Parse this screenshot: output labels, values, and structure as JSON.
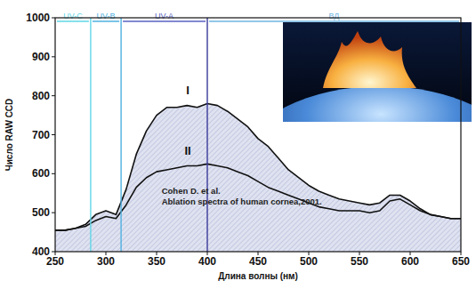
{
  "chart_data": {
    "type": "line",
    "x_label": "Длина волны (нм)",
    "y_label": "Число RAW CCD",
    "x": [
      250,
      260,
      270,
      280,
      290,
      300,
      310,
      320,
      330,
      340,
      350,
      360,
      370,
      380,
      390,
      400,
      410,
      420,
      430,
      440,
      450,
      460,
      470,
      480,
      490,
      500,
      510,
      520,
      530,
      540,
      550,
      560,
      570,
      580,
      590,
      600,
      610,
      620,
      630,
      640,
      650
    ],
    "series": [
      {
        "name": "I",
        "color": "#111111",
        "values": [
          455,
          455,
          460,
          470,
          495,
          505,
          495,
          560,
          650,
          710,
          750,
          770,
          770,
          775,
          770,
          780,
          775,
          760,
          740,
          720,
          690,
          670,
          640,
          610,
          590,
          570,
          555,
          545,
          535,
          530,
          525,
          520,
          525,
          545,
          545,
          530,
          510,
          495,
          490,
          485,
          485
        ]
      },
      {
        "name": "II",
        "color": "#111111",
        "values": [
          455,
          455,
          460,
          465,
          480,
          490,
          485,
          520,
          565,
          590,
          605,
          610,
          615,
          620,
          620,
          625,
          620,
          615,
          605,
          595,
          580,
          565,
          555,
          545,
          535,
          525,
          515,
          510,
          505,
          505,
          505,
          500,
          505,
          530,
          535,
          520,
          505,
          495,
          490,
          485,
          485
        ]
      }
    ],
    "regions": [
      {
        "label": "UV-C",
        "start": 250,
        "end": 285
      },
      {
        "label": "UV-B",
        "start": 285,
        "end": 315
      },
      {
        "label": "UV-A",
        "start": 315,
        "end": 400
      },
      {
        "label": "ВД",
        "start": 400,
        "end": 650
      }
    ],
    "annotations": [
      {
        "text": "Cohen D. et al.",
        "x": 355,
        "y": 548
      },
      {
        "text": "Ablation spectra of human cornea,2001.",
        "x": 355,
        "y": 522
      }
    ],
    "xlim": [
      250,
      650
    ],
    "ylim": [
      400,
      1000
    ],
    "xticks": [
      250,
      300,
      350,
      400,
      450,
      500,
      550,
      600,
      650
    ],
    "yticks": [
      400,
      500,
      600,
      700,
      800,
      900,
      1000
    ],
    "grid": false
  }
}
